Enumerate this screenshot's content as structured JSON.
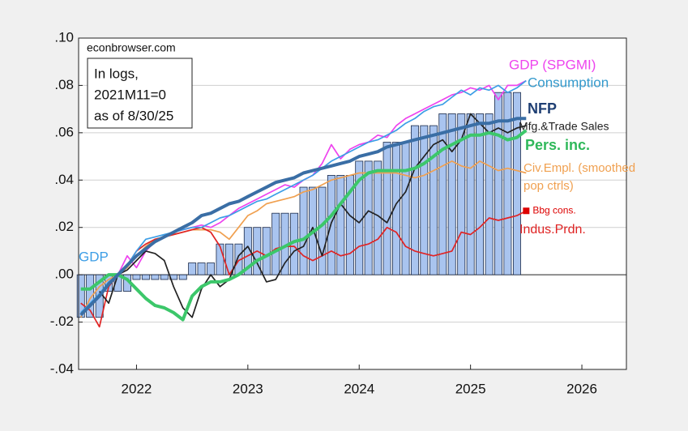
{
  "chart_data": {
    "type": "line",
    "source": "econbrowser.com",
    "note": [
      "In logs,",
      "2021M11=0",
      "as of 8/30/25"
    ],
    "x": [
      2021.5,
      2021.583,
      2021.667,
      2021.75,
      2021.833,
      2021.917,
      2022,
      2022.083,
      2022.167,
      2022.25,
      2022.333,
      2022.417,
      2022.5,
      2022.583,
      2022.667,
      2022.75,
      2022.833,
      2022.917,
      2023,
      2023.083,
      2023.167,
      2023.25,
      2023.333,
      2023.417,
      2023.5,
      2023.583,
      2023.667,
      2023.75,
      2023.833,
      2023.917,
      2024,
      2024.083,
      2024.167,
      2024.25,
      2024.333,
      2024.417,
      2024.5,
      2024.583,
      2024.667,
      2024.75,
      2024.833,
      2024.917,
      2025,
      2025.083,
      2025.167,
      2025.25,
      2025.333,
      2025.417,
      2025.5
    ],
    "xlim": [
      2021.48,
      2026.4
    ],
    "xticks": [
      2022,
      2023,
      2024,
      2025,
      2026
    ],
    "ylim": [
      -0.04,
      0.1
    ],
    "yticks": [
      {
        "value": -0.04,
        "label": "-.04"
      },
      {
        "value": -0.02,
        "label": "-.02"
      },
      {
        "value": 0,
        "label": ".00"
      },
      {
        "value": 0.02,
        "label": ".02"
      },
      {
        "value": 0.04,
        "label": ".04"
      },
      {
        "value": 0.06,
        "label": ".06"
      },
      {
        "value": 0.08,
        "label": ".08"
      },
      {
        "value": 0.1,
        "label": ".10"
      }
    ],
    "grid": true,
    "series": [
      {
        "name": "GDP",
        "type": "bar",
        "color": "#a9c4ef",
        "values": [
          -0.018,
          -0.018,
          -0.018,
          -0.007,
          -0.007,
          -0.007,
          -0.002,
          -0.002,
          -0.002,
          -0.002,
          -0.002,
          -0.002,
          0.005,
          0.005,
          0.005,
          0.013,
          0.013,
          0.013,
          0.02,
          0.02,
          0.02,
          0.026,
          0.026,
          0.026,
          0.037,
          0.037,
          0.037,
          0.042,
          0.042,
          0.042,
          0.048,
          0.048,
          0.048,
          0.056,
          0.056,
          0.056,
          0.063,
          0.063,
          0.063,
          0.068,
          0.068,
          0.068,
          0.068,
          0.068,
          0.068,
          0.077,
          0.077,
          0.077,
          null
        ]
      },
      {
        "name": "Civ.Empl. (smoothed pop ctrls)",
        "type": "line",
        "color": "#f0a050",
        "values": [
          -0.018,
          -0.01,
          -0.005,
          -0.002,
          0.0,
          0.003,
          0.008,
          0.012,
          0.015,
          0.016,
          0.017,
          0.018,
          0.019,
          0.019,
          0.019,
          0.018,
          0.015,
          0.02,
          0.025,
          0.027,
          0.03,
          0.031,
          0.032,
          0.033,
          0.035,
          0.036,
          0.038,
          0.04,
          0.041,
          0.042,
          0.043,
          0.043,
          0.043,
          0.043,
          0.043,
          0.042,
          0.041,
          0.042,
          0.044,
          0.046,
          0.048,
          0.046,
          0.045,
          0.048,
          0.046,
          0.044,
          0.045,
          0.044,
          0.043
        ]
      },
      {
        "name": "Indus.Prdn.",
        "type": "line",
        "color": "#e02424",
        "values": [
          -0.012,
          -0.015,
          -0.022,
          -0.005,
          0.0,
          0.004,
          0.01,
          0.013,
          0.015,
          0.016,
          0.017,
          0.018,
          0.019,
          0.02,
          0.018,
          0.012,
          0.0,
          0.006,
          0.008,
          0.01,
          0.008,
          0.011,
          0.012,
          0.012,
          0.008,
          0.006,
          0.008,
          0.01,
          0.008,
          0.009,
          0.012,
          0.013,
          0.015,
          0.02,
          0.018,
          0.012,
          0.01,
          0.009,
          0.008,
          0.009,
          0.01,
          0.018,
          0.017,
          0.02,
          0.024,
          0.023,
          0.024,
          0.025,
          0.027
        ]
      },
      {
        "name": "GDP (SPGMI)",
        "type": "line",
        "color": "#ee44ee",
        "values": [
          null,
          null,
          -0.008,
          -0.004,
          0.0,
          0.008,
          0.003,
          0.01,
          0.014,
          0.016,
          0.018,
          0.019,
          0.02,
          0.021,
          0.02,
          0.022,
          0.025,
          0.028,
          0.03,
          0.032,
          0.034,
          0.036,
          0.038,
          0.037,
          0.04,
          0.042,
          0.047,
          0.055,
          0.049,
          0.053,
          0.055,
          0.056,
          0.059,
          0.058,
          0.063,
          0.066,
          0.068,
          0.07,
          0.072,
          0.074,
          0.076,
          0.077,
          0.079,
          0.078,
          0.08,
          0.074,
          0.08,
          0.08,
          0.082
        ]
      },
      {
        "name": "Consumption",
        "type": "line",
        "color": "#3d9ee6",
        "values": [
          -0.016,
          -0.012,
          -0.008,
          -0.003,
          0.0,
          0.004,
          0.01,
          0.015,
          0.016,
          0.017,
          0.018,
          0.019,
          0.02,
          0.02,
          0.022,
          0.024,
          0.025,
          0.027,
          0.029,
          0.031,
          0.032,
          0.034,
          0.036,
          0.038,
          0.04,
          0.042,
          0.045,
          0.048,
          0.05,
          0.052,
          0.054,
          0.056,
          0.057,
          0.059,
          0.061,
          0.064,
          0.066,
          0.069,
          0.071,
          0.072,
          0.075,
          0.078,
          0.076,
          0.079,
          0.078,
          0.08,
          0.077,
          0.079,
          0.082
        ]
      },
      {
        "name": "Mfg.&Trade Sales",
        "type": "line",
        "color": "#222222",
        "values": [
          null,
          null,
          -0.007,
          -0.012,
          0.0,
          0.002,
          0.006,
          0.01,
          0.009,
          0.006,
          -0.005,
          -0.014,
          -0.018,
          -0.006,
          0.0,
          -0.005,
          -0.002,
          0.008,
          0.012,
          0.005,
          -0.003,
          -0.002,
          0.005,
          0.01,
          0.012,
          0.02,
          0.008,
          0.022,
          0.03,
          0.025,
          0.022,
          0.027,
          0.025,
          0.022,
          0.03,
          0.035,
          0.045,
          0.05,
          0.055,
          0.057,
          0.052,
          0.057,
          0.068,
          0.064,
          0.06,
          0.062,
          0.06,
          0.062,
          0.063
        ]
      },
      {
        "name": "Pers. inc.",
        "type": "line",
        "color": "#3cc76a",
        "values": [
          -0.006,
          -0.006,
          -0.003,
          0.0,
          0.0,
          -0.002,
          -0.006,
          -0.01,
          -0.013,
          -0.014,
          -0.016,
          -0.019,
          -0.009,
          -0.005,
          -0.003,
          -0.003,
          -0.002,
          0.0,
          0.003,
          0.006,
          0.008,
          0.01,
          0.012,
          0.014,
          0.015,
          0.018,
          0.021,
          0.025,
          0.03,
          0.035,
          0.04,
          0.043,
          0.044,
          0.044,
          0.044,
          0.044,
          0.045,
          0.047,
          0.05,
          0.053,
          0.055,
          0.057,
          0.059,
          0.059,
          0.06,
          0.059,
          0.057,
          0.058,
          0.061
        ]
      },
      {
        "name": "NFP",
        "type": "line",
        "color": "#3a6ea5",
        "values": [
          -0.017,
          -0.013,
          -0.009,
          -0.004,
          0.0,
          0.004,
          0.008,
          0.011,
          0.014,
          0.016,
          0.018,
          0.02,
          0.022,
          0.025,
          0.026,
          0.028,
          0.03,
          0.031,
          0.033,
          0.035,
          0.037,
          0.039,
          0.04,
          0.041,
          0.043,
          0.044,
          0.045,
          0.046,
          0.047,
          0.048,
          0.05,
          0.051,
          0.052,
          0.054,
          0.055,
          0.056,
          0.057,
          0.058,
          0.059,
          0.06,
          0.061,
          0.062,
          0.063,
          0.064,
          0.064,
          0.065,
          0.065,
          0.066,
          0.066
        ]
      }
    ],
    "point": {
      "name": "Bbg cons.",
      "color": "#dd0000",
      "x": 2025.5,
      "value": 0.027
    }
  }
}
